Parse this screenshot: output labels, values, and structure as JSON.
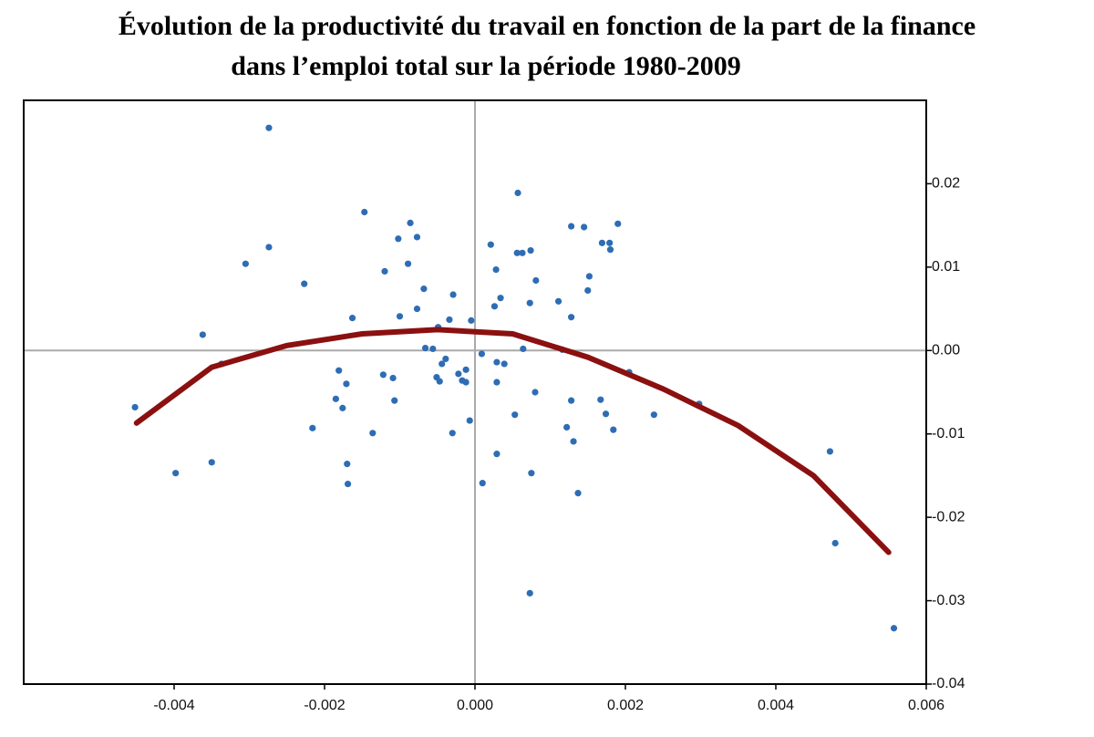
{
  "chart_data": {
    "type": "scatter",
    "title": [
      "Évolution de la productivité du travail en fonction de la part de la finance",
      "dans l’emploi total sur la période 1980-2009"
    ],
    "xlim": [
      -0.006,
      0.006
    ],
    "xticks": [
      -0.004,
      -0.002,
      {
        "value": 0,
        "label": "0.000"
      },
      0.002,
      0.004,
      0.006
    ],
    "ylim": [
      -0.04,
      0.03
    ],
    "yticks": [
      -0.04,
      -0.03,
      -0.02,
      -0.01,
      {
        "value": 0,
        "label": "0.00"
      },
      0.01,
      0.02
    ],
    "zero_lines": true,
    "points": {
      "color": "#2e6db4",
      "x": [
        -0.00274,
        -0.00274,
        -0.00305,
        -0.00362,
        -0.00337,
        -0.00452,
        -0.00398,
        -0.0035,
        -0.00227,
        -0.00147,
        -0.00163,
        -0.00216,
        -0.00181,
        -0.00185,
        -0.00176,
        -0.00171,
        -0.0017,
        -0.00169,
        -0.00136,
        -0.0012,
        -0.00122,
        -0.00109,
        -0.00107,
        -0.00102,
        -0.001,
        -0.00089,
        -0.00086,
        -0.00077,
        -0.00077,
        -0.00068,
        -0.00066,
        -0.00056,
        -0.00051,
        -0.00049,
        -0.00047,
        -0.00044,
        -0.00039,
        -0.00034,
        -0.00029,
        -0.0003,
        -0.00022,
        -0.00017,
        -0.00012,
        -0.00012,
        -7e-05,
        -5e-05,
        9e-05,
        0.0001,
        0.00021,
        0.00026,
        0.00028,
        0.00029,
        0.00029,
        0.00029,
        0.00034,
        0.00039,
        0.00053,
        0.00057,
        0.00056,
        0.00063,
        0.00064,
        0.00073,
        0.00074,
        0.00075,
        0.00073,
        0.0008,
        0.00081,
        0.00111,
        0.00116,
        0.00122,
        0.00128,
        0.00128,
        0.00128,
        0.00131,
        0.00137,
        0.00145,
        0.0015,
        0.00152,
        0.00167,
        0.00169,
        0.00174,
        0.00179,
        0.0018,
        0.00184,
        0.0019,
        0.00205,
        0.00238,
        0.00298,
        0.00472,
        0.00479,
        0.00557
      ],
      "y": [
        0.0267,
        0.0124,
        0.0104,
        0.0019,
        -0.0016,
        -0.0068,
        -0.0147,
        -0.0134,
        0.008,
        0.0166,
        0.0039,
        -0.0093,
        -0.0024,
        -0.0058,
        -0.0069,
        -0.004,
        -0.0136,
        -0.016,
        -0.0099,
        0.0095,
        -0.0029,
        -0.0033,
        -0.006,
        0.0134,
        0.0041,
        0.0104,
        0.0153,
        0.0136,
        0.005,
        0.0074,
        0.0003,
        0.0002,
        -0.0032,
        0.0028,
        -0.0037,
        -0.0016,
        -0.001,
        0.0037,
        0.0067,
        -0.0099,
        -0.0028,
        -0.0036,
        -0.0023,
        -0.0038,
        -0.0084,
        0.0036,
        -0.0004,
        -0.0159,
        0.0127,
        0.0053,
        0.0097,
        -0.0014,
        -0.0038,
        -0.0124,
        0.0063,
        -0.0016,
        -0.0077,
        0.0189,
        0.0117,
        0.0117,
        0.0002,
        0.0057,
        0.012,
        -0.0147,
        -0.0291,
        -0.005,
        0.0084,
        0.0059,
        0.0001,
        -0.0092,
        0.0149,
        0.004,
        -0.006,
        -0.0109,
        -0.0171,
        0.0148,
        0.0072,
        0.0089,
        -0.0059,
        0.0129,
        -0.0076,
        0.0129,
        0.0121,
        -0.0095,
        0.0152,
        -0.0026,
        -0.0077,
        -0.0064,
        -0.0121,
        -0.0231,
        -0.0333
      ]
    },
    "fit": {
      "color": "#8b1010",
      "x": [
        -0.0045,
        -0.0035,
        -0.0025,
        -0.0015,
        -0.0005,
        0.0005,
        0.0015,
        0.0025,
        0.0035,
        0.0045,
        0.0055
      ],
      "y": [
        -0.0087,
        -0.002,
        0.0006,
        0.002,
        0.0025,
        0.002,
        -0.0008,
        -0.0046,
        -0.009,
        -0.015,
        -0.0242
      ]
    }
  }
}
